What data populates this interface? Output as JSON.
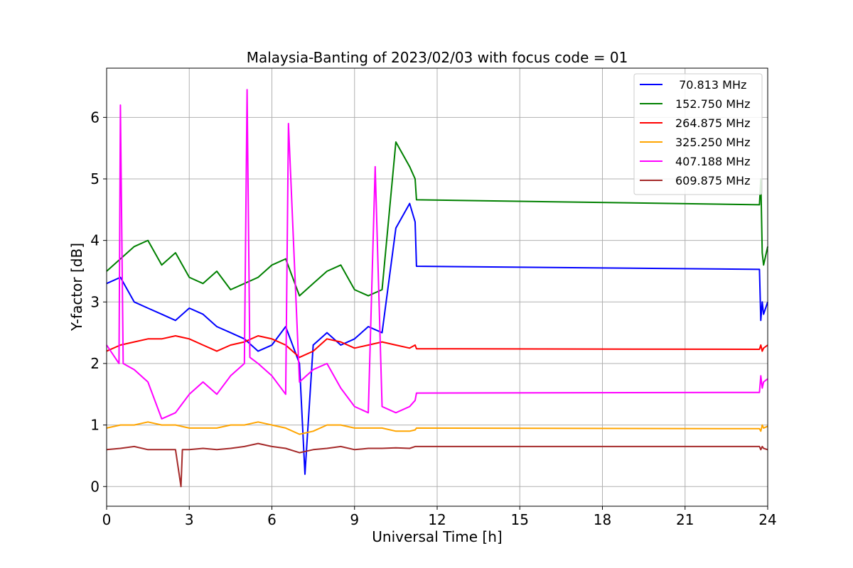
{
  "chart_data": {
    "type": "line",
    "title": "Malaysia-Banting of 2023/02/03 with focus code = 01",
    "xlabel": "Universal Time [h]",
    "ylabel": "Y-factor [dB]",
    "xlim": [
      0,
      24
    ],
    "ylim": [
      -0.32,
      6.8
    ],
    "xticks": [
      0,
      3,
      6,
      9,
      12,
      15,
      18,
      21,
      24
    ],
    "xtick_labels": [
      "0",
      "3",
      "6",
      "9",
      "12",
      "15",
      "18",
      "21",
      "24"
    ],
    "yticks": [
      0,
      1,
      2,
      3,
      4,
      5,
      6
    ],
    "ytick_labels": [
      "0",
      "1",
      "2",
      "3",
      "4",
      "5",
      "6"
    ],
    "grid": true,
    "legend_position": "top-right",
    "series": [
      {
        "name": "70.813 MHz",
        "legend_label": " 70.813 MHz",
        "color": "#0000ff",
        "x": [
          0.0,
          0.5,
          1.0,
          1.5,
          2.0,
          2.5,
          3.0,
          3.5,
          4.0,
          4.5,
          5.0,
          5.5,
          6.0,
          6.5,
          7.0,
          7.2,
          7.5,
          8.0,
          8.5,
          9.0,
          9.5,
          10.0,
          10.5,
          11.0,
          11.2,
          11.25,
          23.7,
          23.75,
          23.8,
          23.85,
          24.0
        ],
        "y": [
          3.3,
          3.4,
          3.0,
          2.9,
          2.8,
          2.7,
          2.9,
          2.8,
          2.6,
          2.5,
          2.4,
          2.2,
          2.3,
          2.6,
          2.0,
          0.2,
          2.3,
          2.5,
          2.3,
          2.4,
          2.6,
          2.5,
          4.2,
          4.6,
          4.3,
          3.58,
          3.53,
          2.7,
          3.0,
          2.8,
          3.0
        ]
      },
      {
        "name": "152.750 MHz",
        "legend_label": "152.750 MHz",
        "color": "#008000",
        "x": [
          0.0,
          0.5,
          1.0,
          1.5,
          2.0,
          2.5,
          3.0,
          3.5,
          4.0,
          4.5,
          5.0,
          5.5,
          6.0,
          6.5,
          7.0,
          7.5,
          8.0,
          8.5,
          9.0,
          9.5,
          10.0,
          10.5,
          11.0,
          11.2,
          11.25,
          23.7,
          23.75,
          23.8,
          23.85,
          24.0
        ],
        "y": [
          3.5,
          3.7,
          3.9,
          4.0,
          3.6,
          3.8,
          3.4,
          3.3,
          3.5,
          3.2,
          3.3,
          3.4,
          3.6,
          3.7,
          3.1,
          3.3,
          3.5,
          3.6,
          3.2,
          3.1,
          3.2,
          5.6,
          5.2,
          5.0,
          4.66,
          4.58,
          5.0,
          3.8,
          3.6,
          3.9
        ]
      },
      {
        "name": "264.875 MHz",
        "legend_label": "264.875 MHz",
        "color": "#ff0000",
        "x": [
          0.0,
          0.5,
          1.0,
          1.5,
          2.0,
          2.5,
          3.0,
          3.5,
          4.0,
          4.5,
          5.0,
          5.5,
          6.0,
          6.5,
          7.0,
          7.5,
          8.0,
          8.5,
          9.0,
          9.5,
          10.0,
          10.5,
          11.0,
          11.2,
          11.25,
          23.7,
          23.75,
          23.8,
          23.85,
          24.0
        ],
        "y": [
          2.2,
          2.3,
          2.35,
          2.4,
          2.4,
          2.45,
          2.4,
          2.3,
          2.2,
          2.3,
          2.35,
          2.45,
          2.4,
          2.3,
          2.1,
          2.2,
          2.4,
          2.35,
          2.25,
          2.3,
          2.35,
          2.3,
          2.25,
          2.3,
          2.24,
          2.23,
          2.3,
          2.2,
          2.25,
          2.3
        ]
      },
      {
        "name": "325.250 MHz",
        "legend_label": "325.250 MHz",
        "color": "#ffa500",
        "x": [
          0.0,
          0.5,
          1.0,
          1.5,
          2.0,
          2.5,
          3.0,
          3.5,
          4.0,
          4.5,
          5.0,
          5.5,
          6.0,
          6.5,
          7.0,
          7.5,
          8.0,
          8.5,
          9.0,
          9.5,
          10.0,
          10.5,
          11.0,
          11.2,
          11.25,
          23.7,
          23.75,
          23.8,
          23.85,
          24.0
        ],
        "y": [
          0.95,
          1.0,
          1.0,
          1.05,
          1.0,
          1.0,
          0.95,
          0.95,
          0.95,
          1.0,
          1.0,
          1.05,
          1.0,
          0.95,
          0.85,
          0.9,
          1.0,
          1.0,
          0.95,
          0.95,
          0.95,
          0.9,
          0.9,
          0.92,
          0.95,
          0.94,
          0.9,
          1.0,
          0.95,
          0.98
        ]
      },
      {
        "name": "407.188 MHz",
        "legend_label": "407.188 MHz",
        "color": "#ff00ff",
        "x": [
          0.0,
          0.3,
          0.45,
          0.5,
          0.6,
          1.0,
          1.5,
          2.0,
          2.5,
          3.0,
          3.5,
          4.0,
          4.5,
          5.0,
          5.1,
          5.2,
          5.5,
          6.0,
          6.5,
          6.6,
          7.0,
          7.5,
          8.0,
          8.5,
          9.0,
          9.5,
          9.75,
          10.0,
          10.5,
          11.0,
          11.2,
          11.25,
          23.7,
          23.75,
          23.8,
          23.85,
          24.0
        ],
        "y": [
          2.3,
          2.1,
          2.0,
          6.2,
          2.0,
          1.9,
          1.7,
          1.1,
          1.2,
          1.5,
          1.7,
          1.5,
          1.8,
          2.0,
          6.45,
          2.1,
          2.0,
          1.8,
          1.5,
          5.9,
          1.7,
          1.9,
          2.0,
          1.6,
          1.3,
          1.2,
          5.2,
          1.3,
          1.2,
          1.3,
          1.4,
          1.52,
          1.53,
          1.8,
          1.6,
          1.7,
          1.75
        ]
      },
      {
        "name": "609.875 MHz",
        "legend_label": "609.875 MHz",
        "color": "#a52a2a",
        "x": [
          0.0,
          0.5,
          1.0,
          1.5,
          2.0,
          2.5,
          2.7,
          2.75,
          3.0,
          3.5,
          4.0,
          4.5,
          5.0,
          5.5,
          6.0,
          6.5,
          7.0,
          7.5,
          8.0,
          8.5,
          9.0,
          9.5,
          10.0,
          10.5,
          11.0,
          11.2,
          11.25,
          23.7,
          23.75,
          23.8,
          23.85,
          24.0
        ],
        "y": [
          0.6,
          0.62,
          0.65,
          0.6,
          0.6,
          0.6,
          0.0,
          0.6,
          0.6,
          0.62,
          0.6,
          0.62,
          0.65,
          0.7,
          0.65,
          0.62,
          0.55,
          0.6,
          0.62,
          0.65,
          0.6,
          0.62,
          0.62,
          0.63,
          0.62,
          0.65,
          0.65,
          0.65,
          0.6,
          0.65,
          0.62,
          0.6
        ]
      }
    ]
  }
}
